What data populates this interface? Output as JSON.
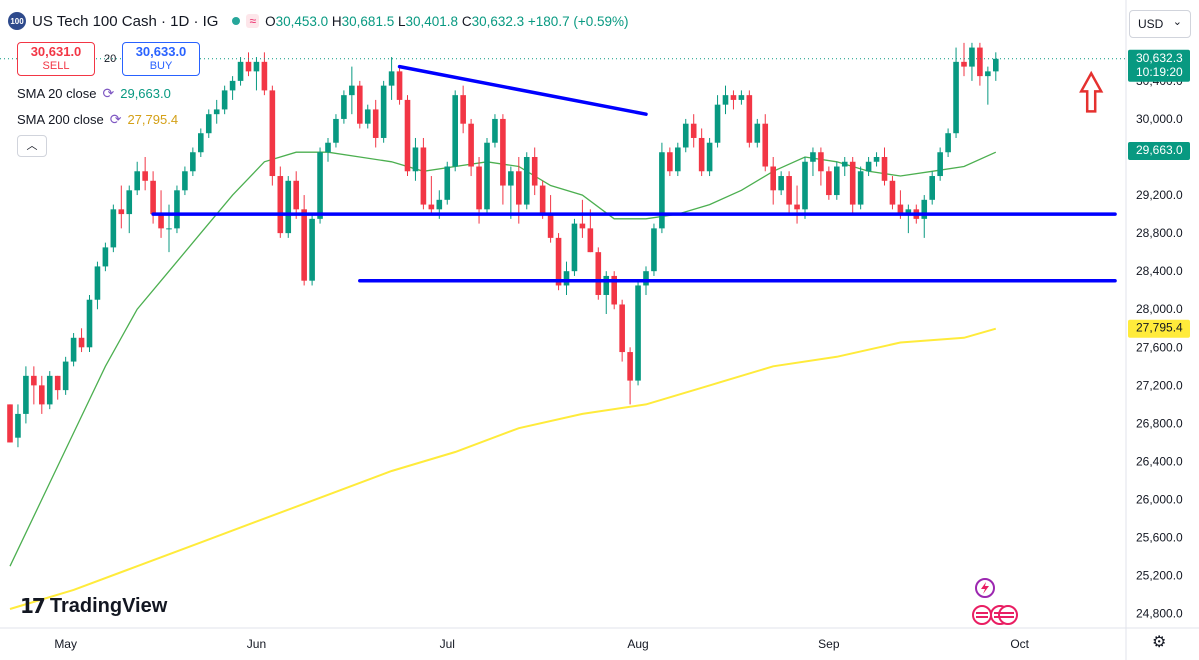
{
  "header": {
    "logo_badge": "100",
    "title": "US Tech 100 Cash · 1D · IG",
    "wave_icon": "≈",
    "open_label": "O",
    "open": "30,453.0",
    "high_label": "H",
    "high": "30,681.5",
    "low_label": "L",
    "low": "30,401.8",
    "close_label": "C",
    "close": "30,632.3",
    "change": "+180.7 (+0.59%)"
  },
  "trade": {
    "sell_price": "30,631.0",
    "sell_label": "SELL",
    "spread": "20",
    "buy_price": "30,633.0",
    "buy_label": "BUY"
  },
  "indicators": [
    {
      "label": "SMA 20 close",
      "value": "29,663.0",
      "color": "#089981"
    },
    {
      "label": "SMA 200 close",
      "value": "27,795.4",
      "color": "#f7c948"
    }
  ],
  "collapse_icon": "︿",
  "currency": {
    "label": "USD",
    "chevron": "⌄"
  },
  "branding": {
    "logo_mark": "17",
    "logo_text": "TradingView"
  },
  "colors": {
    "up": "#089981",
    "down": "#f23645",
    "sma20": "#4caf50",
    "sma200": "#ffeb3b",
    "trendline": "#0000ff",
    "arrow": "#e5312f",
    "price_label": "#089981",
    "sma200_label": "#ffeb3b",
    "sma20_label": "#089981"
  },
  "chart_data": {
    "type": "candlestick",
    "symbol": "US Tech 100 Cash",
    "interval": "1D",
    "x_ticks": [
      "May",
      "Jun",
      "Jul",
      "Aug",
      "Sep",
      "Oct"
    ],
    "y_ticks": [
      "24,800.0",
      "25,200.0",
      "25,600.0",
      "26,000.0",
      "26,400.0",
      "26,800.0",
      "27,200.0",
      "27,600.0",
      "28,000.0",
      "28,400.0",
      "28,800.0",
      "29,200.0",
      "30,000.0"
    ],
    "y_tick_values": [
      24800,
      25200,
      25600,
      26000,
      26400,
      26800,
      27200,
      27600,
      28000,
      28400,
      28800,
      29200,
      30000
    ],
    "ylim": [
      24650,
      31250
    ],
    "grid": false,
    "labels": {
      "last_price": "30,632.3",
      "countdown": "10:19:20",
      "sma20": "29,663.0",
      "sma200": "27,795.4",
      "partial_top": "30,400.0"
    },
    "candles": [
      [
        27000,
        27000,
        26600,
        26600
      ],
      [
        26650,
        27000,
        26550,
        26900
      ],
      [
        26900,
        27400,
        26800,
        27300
      ],
      [
        27300,
        27400,
        27000,
        27200
      ],
      [
        27200,
        27300,
        26900,
        27000
      ],
      [
        27000,
        27350,
        26950,
        27300
      ],
      [
        27300,
        27300,
        27050,
        27150
      ],
      [
        27150,
        27500,
        27100,
        27450
      ],
      [
        27450,
        27750,
        27400,
        27700
      ],
      [
        27700,
        27800,
        27550,
        27600
      ],
      [
        27600,
        28150,
        27550,
        28100
      ],
      [
        28100,
        28500,
        28000,
        28450
      ],
      [
        28450,
        28700,
        28400,
        28650
      ],
      [
        28650,
        29100,
        28600,
        29050
      ],
      [
        29050,
        29300,
        28850,
        29000
      ],
      [
        29000,
        29300,
        28800,
        29250
      ],
      [
        29250,
        29550,
        29200,
        29450
      ],
      [
        29450,
        29600,
        29250,
        29350
      ],
      [
        29350,
        29450,
        28900,
        29000
      ],
      [
        29000,
        29250,
        28750,
        28850
      ],
      [
        28850,
        29100,
        28600,
        28850
      ],
      [
        28850,
        29300,
        28800,
        29250
      ],
      [
        29250,
        29500,
        29200,
        29450
      ],
      [
        29450,
        29700,
        29400,
        29650
      ],
      [
        29650,
        29900,
        29600,
        29850
      ],
      [
        29850,
        30100,
        29800,
        30050
      ],
      [
        30050,
        30200,
        29950,
        30100
      ],
      [
        30100,
        30350,
        30050,
        30300
      ],
      [
        30300,
        30450,
        30200,
        30400
      ],
      [
        30400,
        30650,
        30350,
        30600
      ],
      [
        30600,
        30700,
        30450,
        30500
      ],
      [
        30500,
        30650,
        30300,
        30600
      ],
      [
        30600,
        30700,
        30250,
        30300
      ],
      [
        30300,
        30350,
        29300,
        29400
      ],
      [
        29400,
        29500,
        28750,
        28800
      ],
      [
        28800,
        29400,
        28750,
        29350
      ],
      [
        29350,
        29450,
        28950,
        29050
      ],
      [
        29050,
        29200,
        28250,
        28300
      ],
      [
        28300,
        29000,
        28250,
        28950
      ],
      [
        28950,
        29700,
        28900,
        29650
      ],
      [
        29650,
        29800,
        29550,
        29750
      ],
      [
        29750,
        30050,
        29700,
        30000
      ],
      [
        30000,
        30300,
        29950,
        30250
      ],
      [
        30250,
        30550,
        30050,
        30350
      ],
      [
        30350,
        30400,
        29900,
        29950
      ],
      [
        29950,
        30150,
        29900,
        30100
      ],
      [
        30100,
        30200,
        29700,
        29800
      ],
      [
        29800,
        30400,
        29750,
        30350
      ],
      [
        30350,
        30650,
        30200,
        30500
      ],
      [
        30500,
        30550,
        30150,
        30200
      ],
      [
        30200,
        30250,
        29400,
        29450
      ],
      [
        29450,
        29800,
        29350,
        29700
      ],
      [
        29700,
        29800,
        29050,
        29100
      ],
      [
        29100,
        29400,
        29000,
        29050
      ],
      [
        29050,
        29250,
        28950,
        29150
      ],
      [
        29150,
        29550,
        29100,
        29500
      ],
      [
        29500,
        30300,
        29450,
        30250
      ],
      [
        30250,
        30350,
        29850,
        29950
      ],
      [
        29950,
        30000,
        29400,
        29500
      ],
      [
        29500,
        29600,
        28900,
        29050
      ],
      [
        29050,
        29800,
        29000,
        29750
      ],
      [
        29750,
        30050,
        29700,
        30000
      ],
      [
        30000,
        30050,
        29100,
        29300
      ],
      [
        29300,
        29500,
        28950,
        29450
      ],
      [
        29450,
        29600,
        28900,
        29100
      ],
      [
        29100,
        29650,
        29050,
        29600
      ],
      [
        29600,
        29700,
        29200,
        29300
      ],
      [
        29300,
        29350,
        28950,
        29000
      ],
      [
        29000,
        29200,
        28700,
        28750
      ],
      [
        28750,
        28800,
        28200,
        28250
      ],
      [
        28250,
        28500,
        28150,
        28400
      ],
      [
        28400,
        28950,
        28350,
        28900
      ],
      [
        28900,
        29150,
        28750,
        28850
      ],
      [
        28850,
        29050,
        28600,
        28600
      ],
      [
        28600,
        28650,
        28100,
        28150
      ],
      [
        28150,
        28400,
        27950,
        28350
      ],
      [
        28350,
        28400,
        28000,
        28050
      ],
      [
        28050,
        28100,
        27450,
        27550
      ],
      [
        27550,
        27600,
        27000,
        27250
      ],
      [
        27250,
        28300,
        27200,
        28250
      ],
      [
        28250,
        28450,
        28150,
        28400
      ],
      [
        28400,
        28900,
        28350,
        28850
      ],
      [
        28850,
        29750,
        28800,
        29650
      ],
      [
        29650,
        29700,
        29400,
        29450
      ],
      [
        29450,
        29750,
        29400,
        29700
      ],
      [
        29700,
        30000,
        29650,
        29950
      ],
      [
        29950,
        30050,
        29700,
        29800
      ],
      [
        29800,
        29900,
        29400,
        29450
      ],
      [
        29450,
        29800,
        29400,
        29750
      ],
      [
        29750,
        30250,
        29700,
        30150
      ],
      [
        30150,
        30350,
        30050,
        30250
      ],
      [
        30250,
        30300,
        30100,
        30200
      ],
      [
        30200,
        30300,
        30150,
        30250
      ],
      [
        30250,
        30300,
        29700,
        29750
      ],
      [
        29750,
        30000,
        29700,
        29950
      ],
      [
        29950,
        30050,
        29450,
        29500
      ],
      [
        29500,
        29600,
        29100,
        29250
      ],
      [
        29250,
        29450,
        29200,
        29400
      ],
      [
        29400,
        29450,
        29000,
        29100
      ],
      [
        29100,
        29300,
        28900,
        29050
      ],
      [
        29050,
        29600,
        28950,
        29550
      ],
      [
        29550,
        29700,
        29400,
        29650
      ],
      [
        29650,
        29700,
        29300,
        29450
      ],
      [
        29450,
        29500,
        29150,
        29200
      ],
      [
        29200,
        29550,
        29150,
        29500
      ],
      [
        29500,
        29600,
        29400,
        29550
      ],
      [
        29550,
        29600,
        29000,
        29100
      ],
      [
        29100,
        29500,
        29050,
        29450
      ],
      [
        29450,
        29600,
        29400,
        29550
      ],
      [
        29550,
        29650,
        29500,
        29600
      ],
      [
        29600,
        29700,
        29300,
        29350
      ],
      [
        29350,
        29400,
        29050,
        29100
      ],
      [
        29100,
        29250,
        28950,
        29000
      ],
      [
        29000,
        29100,
        28800,
        29050
      ],
      [
        29050,
        29100,
        28900,
        28950
      ],
      [
        28950,
        29200,
        28750,
        29150
      ],
      [
        29150,
        29450,
        29100,
        29400
      ],
      [
        29400,
        29700,
        29350,
        29650
      ],
      [
        29650,
        29900,
        29600,
        29850
      ],
      [
        29850,
        30750,
        29800,
        30600
      ],
      [
        30600,
        30800,
        30450,
        30550
      ],
      [
        30550,
        30800,
        30400,
        30750
      ],
      [
        30750,
        30800,
        30350,
        30450
      ],
      [
        30450,
        30550,
        30150,
        30500
      ],
      [
        30500,
        30700,
        30400,
        30632
      ]
    ],
    "sma20": [
      [
        0,
        25300
      ],
      [
        4,
        26000
      ],
      [
        8,
        26700
      ],
      [
        12,
        27400
      ],
      [
        16,
        28000
      ],
      [
        20,
        28400
      ],
      [
        24,
        28800
      ],
      [
        28,
        29200
      ],
      [
        32,
        29550
      ],
      [
        36,
        29650
      ],
      [
        40,
        29650
      ],
      [
        44,
        29600
      ],
      [
        48,
        29550
      ],
      [
        52,
        29450
      ],
      [
        56,
        29500
      ],
      [
        60,
        29550
      ],
      [
        64,
        29500
      ],
      [
        68,
        29300
      ],
      [
        72,
        29200
      ],
      [
        76,
        28950
      ],
      [
        80,
        28950
      ],
      [
        84,
        29000
      ],
      [
        88,
        29100
      ],
      [
        92,
        29250
      ],
      [
        96,
        29450
      ],
      [
        100,
        29600
      ],
      [
        104,
        29550
      ],
      [
        108,
        29450
      ],
      [
        112,
        29400
      ],
      [
        116,
        29450
      ],
      [
        120,
        29500
      ],
      [
        124,
        29650
      ]
    ],
    "sma200": [
      [
        0,
        24850
      ],
      [
        8,
        25050
      ],
      [
        16,
        25300
      ],
      [
        24,
        25550
      ],
      [
        32,
        25800
      ],
      [
        40,
        26050
      ],
      [
        48,
        26300
      ],
      [
        56,
        26500
      ],
      [
        64,
        26750
      ],
      [
        72,
        26900
      ],
      [
        80,
        27000
      ],
      [
        88,
        27200
      ],
      [
        96,
        27400
      ],
      [
        104,
        27500
      ],
      [
        112,
        27650
      ],
      [
        120,
        27700
      ],
      [
        124,
        27795.4
      ]
    ],
    "trendlines": [
      {
        "from": [
          49,
          30550
        ],
        "to": [
          80,
          30050
        ]
      },
      {
        "from": [
          18,
          29000
        ],
        "to": [
          139,
          29000
        ]
      },
      {
        "from": [
          44,
          28300
        ],
        "to": [
          139,
          28300
        ]
      }
    ],
    "annotations": [
      {
        "type": "arrow-up",
        "at": [
          136,
          30080
        ]
      }
    ]
  }
}
